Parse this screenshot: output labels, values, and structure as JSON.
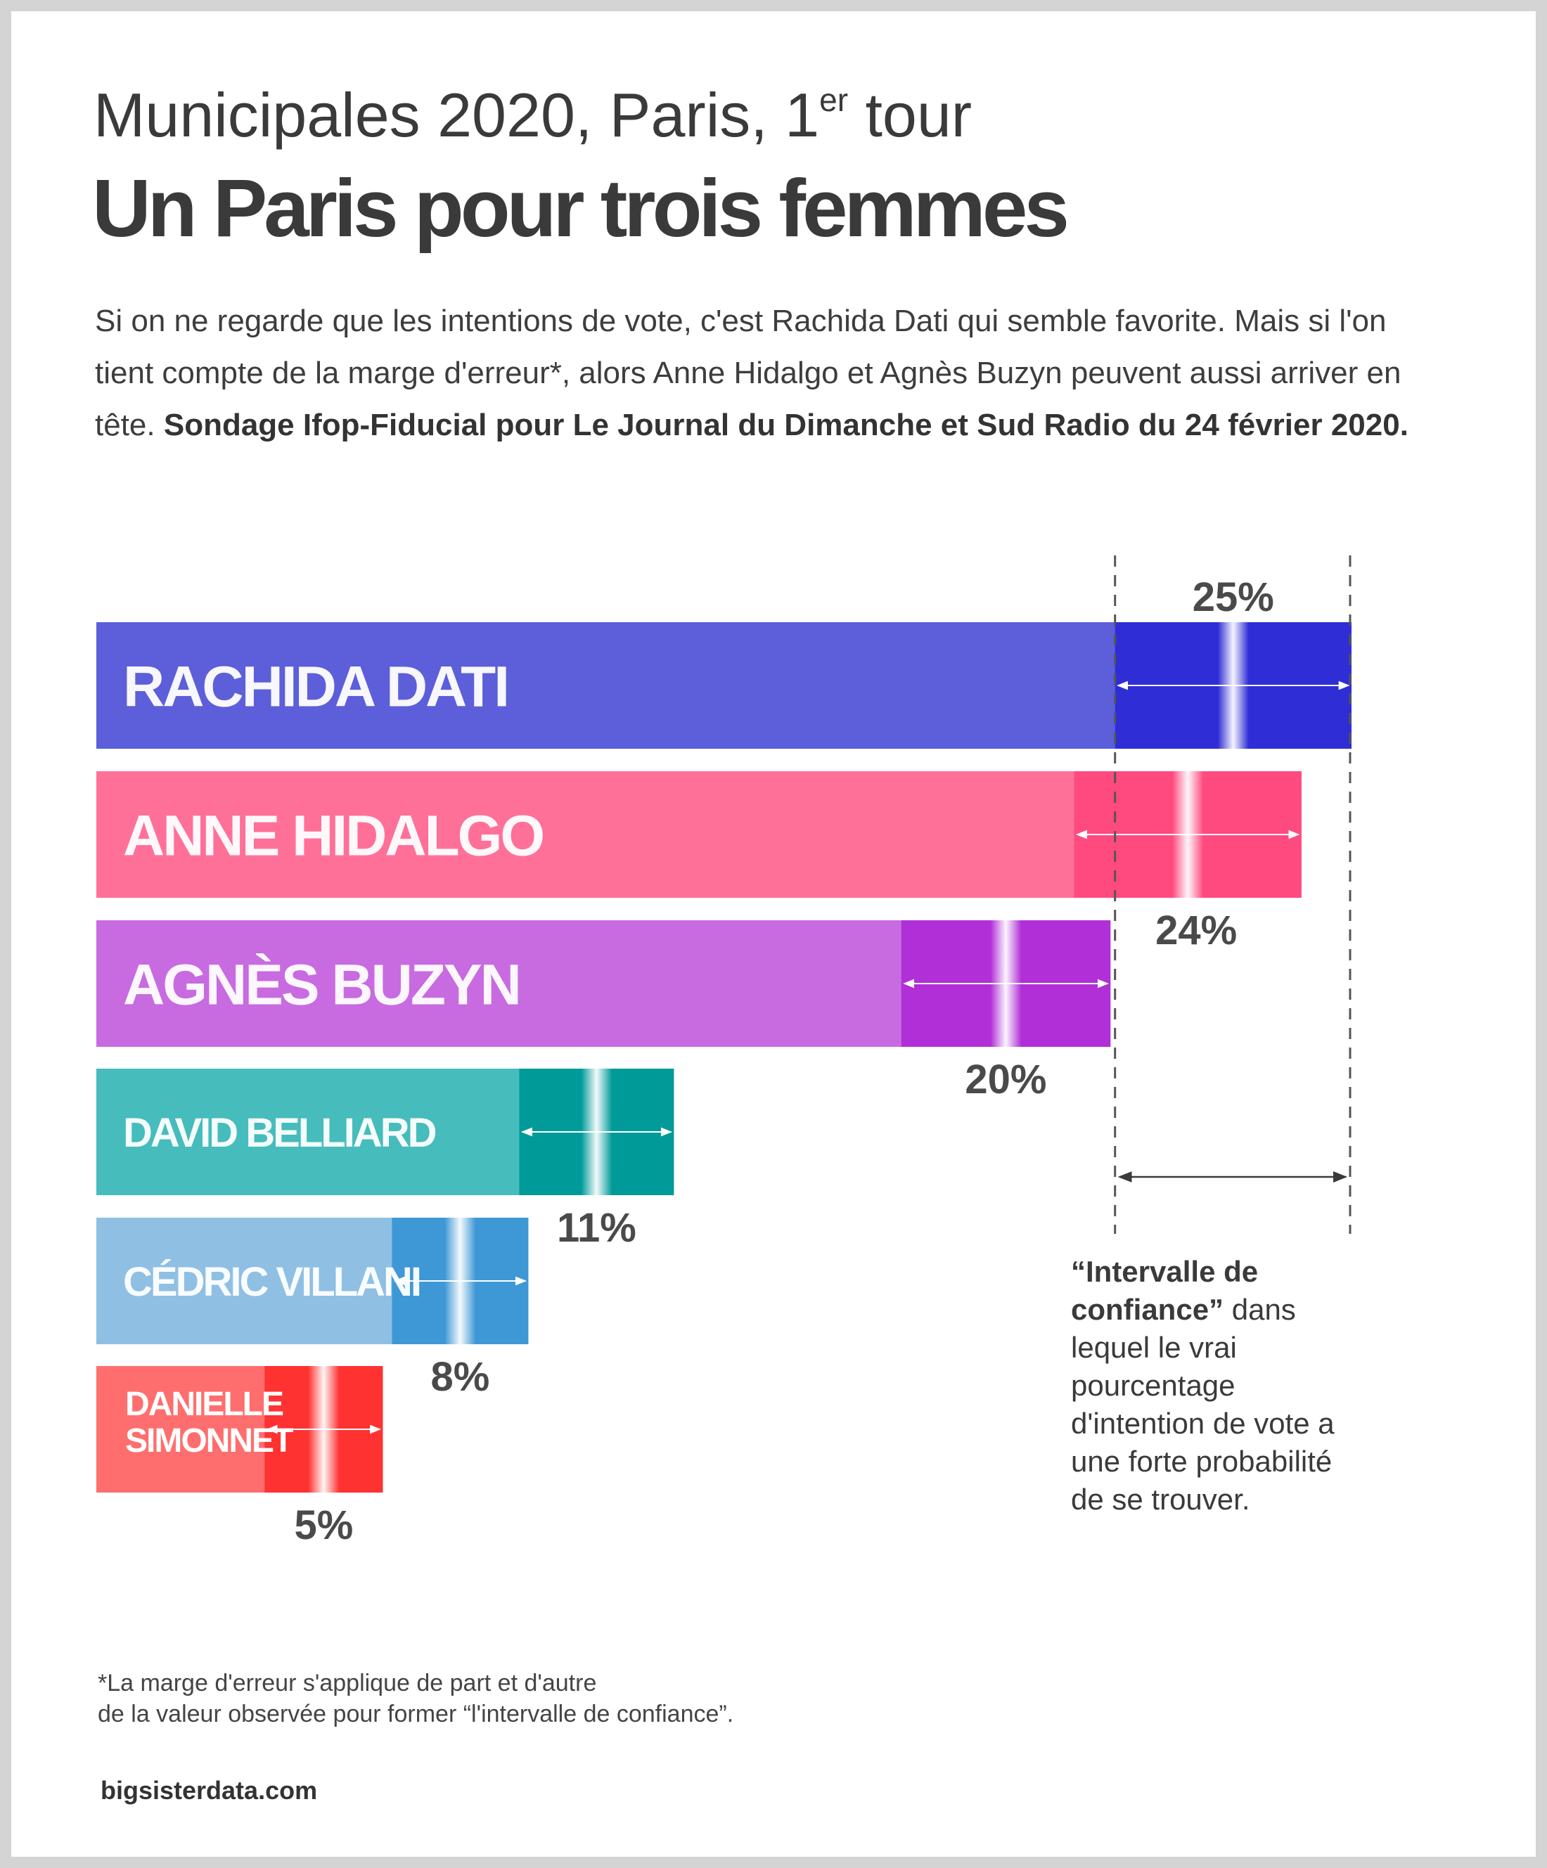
{
  "header": {
    "supertitle_main": "Municipales 2020, Paris, 1",
    "supertitle_sup": "er",
    "supertitle_end": " tour",
    "title": "Un Paris pour trois femmes"
  },
  "description": {
    "text": "Si on ne regarde que les intentions de vote, c'est Rachida Dati qui semble favorite. Mais si l'on tient compte de la marge d'erreur*, alors Anne Hidalgo et Agnès Buzyn peuvent aussi arriver en tête. ",
    "bold": "Sondage Ifop-Fiducial pour Le Journal du Dimanche et Sud Radio du 24 février 2020."
  },
  "annotation": {
    "bold": "“Intervalle de confiance”",
    "text": " dans lequel le vrai pourcentage d'intention de vote a une forte probabilité de se trouver."
  },
  "footnote": {
    "line1": "*La marge d'erreur s'applique de part et d'autre",
    "line2": "de la valeur observée pour former “l'intervalle de confiance”."
  },
  "source": "bigsisterdata.com",
  "chart_data": {
    "type": "bar",
    "orientation": "horizontal",
    "categories": [
      "RACHIDA DATI",
      "ANNE HIDALGO",
      "AGNÈS BUZYN",
      "DAVID BELLIARD",
      "CÉDRIC VILLANI",
      "DANIELLE SIMONNET"
    ],
    "values": [
      25,
      24,
      20,
      11,
      8,
      5
    ],
    "value_labels": [
      "25%",
      "24%",
      "20%",
      "11%",
      "8%",
      "5%"
    ],
    "confidence_intervals": [
      [
        22.4,
        27.6
      ],
      [
        21.5,
        26.5
      ],
      [
        17.7,
        22.3
      ],
      [
        9.3,
        12.7
      ],
      [
        6.5,
        9.5
      ],
      [
        3.7,
        6.3
      ]
    ],
    "xlim": [
      0,
      27.6
    ],
    "colors": {
      "RACHIDA DATI": {
        "bar": "#5c5fd9",
        "interval": "#2f2dd6"
      },
      "ANNE HIDALGO": {
        "bar": "#ff7099",
        "interval": "#ff4a80"
      },
      "AGNÈS BUZYN": {
        "bar": "#c86be0",
        "interval": "#b02fd6"
      },
      "DAVID BELLIARD": {
        "bar": "#46bcbc",
        "interval": "#009a99"
      },
      "CÉDRIC VILLANI": {
        "bar": "#8fc0e3",
        "interval": "#3f98d6"
      },
      "DANIELLE SIMONNET": {
        "bar": "#ff6e6e",
        "interval": "#ff3232"
      }
    }
  }
}
